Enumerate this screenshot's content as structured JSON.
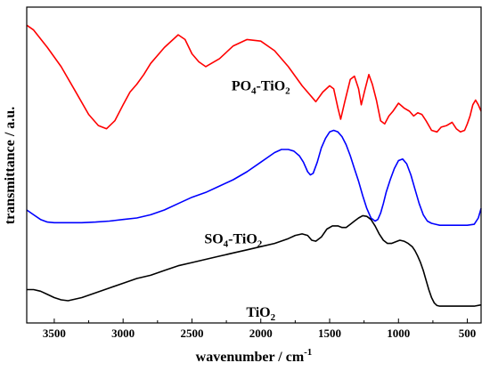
{
  "chart_data": {
    "type": "line",
    "xlabel": "wavenumber / cm",
    "xlabel_sup": "-1",
    "ylabel": "transmittance / a.u.",
    "xlim": [
      3700,
      400
    ],
    "x_reversed": true,
    "y_ticks_labeled": false,
    "grid": false,
    "x_ticks": [
      3500,
      3000,
      2500,
      2000,
      1500,
      1000,
      500
    ],
    "series": [
      {
        "name": "PO4-TiO2",
        "label_parts": [
          "PO",
          "4",
          "-TiO",
          "2"
        ],
        "color": "#ff0000",
        "x": [
          3700,
          3650,
          3550,
          3450,
          3350,
          3250,
          3180,
          3120,
          3060,
          3000,
          2950,
          2900,
          2850,
          2800,
          2700,
          2600,
          2550,
          2500,
          2450,
          2400,
          2300,
          2200,
          2100,
          2000,
          1900,
          1800,
          1700,
          1600,
          1550,
          1500,
          1470,
          1440,
          1420,
          1390,
          1350,
          1320,
          1290,
          1270,
          1245,
          1215,
          1190,
          1160,
          1130,
          1100,
          1070,
          1040,
          1000,
          960,
          920,
          890,
          860,
          830,
          800,
          760,
          720,
          690,
          650,
          610,
          580,
          550,
          520,
          500,
          480,
          460,
          440,
          420,
          400
        ],
        "y": [
          8.9,
          8.75,
          8.2,
          7.6,
          6.85,
          6.1,
          5.75,
          5.65,
          5.9,
          6.4,
          6.8,
          7.05,
          7.35,
          7.7,
          8.2,
          8.6,
          8.45,
          8.0,
          7.75,
          7.6,
          7.85,
          8.25,
          8.45,
          8.4,
          8.1,
          7.6,
          7.0,
          6.5,
          6.8,
          7.0,
          6.9,
          6.3,
          5.95,
          6.5,
          7.2,
          7.3,
          6.9,
          6.4,
          6.85,
          7.35,
          7.05,
          6.55,
          5.9,
          5.8,
          6.05,
          6.2,
          6.45,
          6.3,
          6.2,
          6.05,
          6.15,
          6.1,
          5.9,
          5.6,
          5.55,
          5.7,
          5.75,
          5.85,
          5.65,
          5.55,
          5.6,
          5.8,
          6.05,
          6.4,
          6.55,
          6.4,
          6.2
        ]
      },
      {
        "name": "SO4-TiO2",
        "label_parts": [
          "SO",
          "4",
          "-TiO",
          "2"
        ],
        "color": "#0000ff",
        "x": [
          3700,
          3650,
          3600,
          3550,
          3500,
          3400,
          3300,
          3200,
          3100,
          3000,
          2900,
          2800,
          2700,
          2600,
          2500,
          2400,
          2300,
          2200,
          2100,
          2000,
          1950,
          1900,
          1850,
          1800,
          1760,
          1720,
          1690,
          1660,
          1640,
          1620,
          1590,
          1560,
          1530,
          1500,
          1470,
          1440,
          1410,
          1380,
          1350,
          1320,
          1290,
          1260,
          1230,
          1200,
          1170,
          1150,
          1130,
          1110,
          1090,
          1060,
          1030,
          1000,
          970,
          940,
          910,
          880,
          850,
          820,
          790,
          760,
          730,
          700,
          650,
          600,
          550,
          500,
          450,
          420,
          400
        ],
        "y": [
          3.1,
          2.95,
          2.8,
          2.72,
          2.7,
          2.7,
          2.7,
          2.72,
          2.75,
          2.8,
          2.85,
          2.95,
          3.1,
          3.3,
          3.5,
          3.65,
          3.85,
          4.05,
          4.3,
          4.6,
          4.75,
          4.9,
          5.0,
          5.0,
          4.95,
          4.8,
          4.6,
          4.3,
          4.2,
          4.25,
          4.6,
          5.05,
          5.35,
          5.55,
          5.6,
          5.55,
          5.4,
          5.15,
          4.8,
          4.4,
          4.0,
          3.55,
          3.15,
          2.85,
          2.75,
          2.8,
          3.0,
          3.3,
          3.65,
          4.05,
          4.4,
          4.65,
          4.7,
          4.55,
          4.2,
          3.75,
          3.3,
          2.95,
          2.75,
          2.68,
          2.65,
          2.62,
          2.62,
          2.62,
          2.62,
          2.62,
          2.65,
          2.85,
          3.15
        ]
      },
      {
        "name": "TiO2",
        "label_parts": [
          "TiO",
          "2"
        ],
        "color": "#000000",
        "x": [
          3700,
          3650,
          3600,
          3550,
          3500,
          3450,
          3400,
          3300,
          3200,
          3100,
          3000,
          2900,
          2800,
          2700,
          2600,
          2500,
          2400,
          2300,
          2200,
          2100,
          2000,
          1900,
          1800,
          1750,
          1700,
          1660,
          1630,
          1600,
          1560,
          1520,
          1480,
          1440,
          1410,
          1380,
          1350,
          1320,
          1290,
          1260,
          1230,
          1200,
          1170,
          1140,
          1110,
          1080,
          1050,
          1020,
          990,
          960,
          930,
          900,
          880,
          860,
          840,
          820,
          800,
          780,
          760,
          740,
          720,
          700,
          650,
          600,
          550,
          500,
          450,
          400
        ],
        "y": [
          0.6,
          0.6,
          0.55,
          0.45,
          0.35,
          0.28,
          0.25,
          0.35,
          0.5,
          0.65,
          0.8,
          0.95,
          1.05,
          1.2,
          1.35,
          1.45,
          1.55,
          1.65,
          1.75,
          1.85,
          1.95,
          2.05,
          2.2,
          2.3,
          2.35,
          2.3,
          2.15,
          2.12,
          2.25,
          2.5,
          2.6,
          2.6,
          2.55,
          2.55,
          2.65,
          2.75,
          2.85,
          2.92,
          2.9,
          2.8,
          2.6,
          2.35,
          2.15,
          2.05,
          2.05,
          2.1,
          2.15,
          2.12,
          2.05,
          1.95,
          1.82,
          1.65,
          1.45,
          1.2,
          0.9,
          0.6,
          0.35,
          0.18,
          0.1,
          0.08,
          0.08,
          0.08,
          0.08,
          0.08,
          0.08,
          0.12
        ]
      }
    ]
  }
}
